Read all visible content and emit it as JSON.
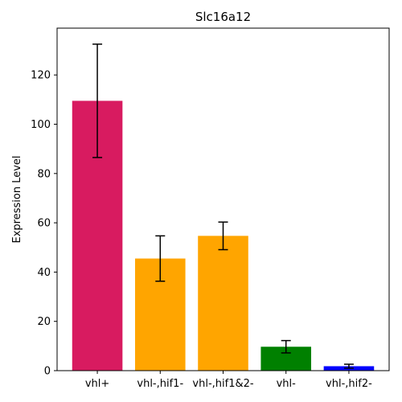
{
  "chart_data": {
    "type": "bar",
    "title": "Slc16a12",
    "xlabel": "",
    "ylabel": "Expression Level",
    "categories": [
      "vhl+",
      "vhl-,hif1-",
      "vhl-,hif1&2-",
      "vhl-",
      "vhl-,hif2-"
    ],
    "values": [
      109.5,
      45.5,
      54.7,
      9.7,
      1.8
    ],
    "errors": [
      23.0,
      9.2,
      5.6,
      2.5,
      0.8
    ],
    "colors": [
      "#d81b60",
      "#ffa500",
      "#ffa500",
      "#008000",
      "#0000ff"
    ],
    "ylim": [
      0,
      139
    ],
    "yticks": [
      0,
      20,
      40,
      60,
      80,
      100,
      120
    ],
    "grid": false,
    "legend": "none"
  }
}
